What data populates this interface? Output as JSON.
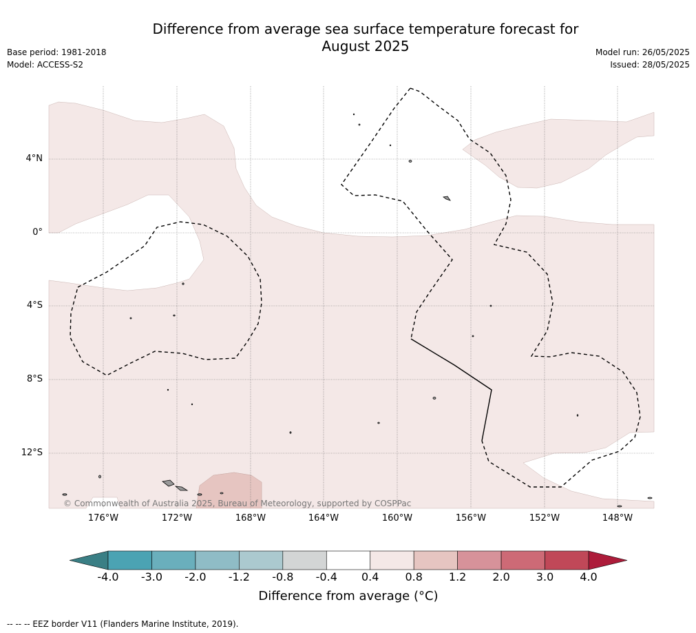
{
  "title": "Difference from average sea surface temperature forecast for\nAugust 2025",
  "meta_left": {
    "base_period": "Base period: 1981-2018",
    "model": "Model: ACCESS-S2"
  },
  "meta_right": {
    "model_run": "Model run: 26/05/2025",
    "issued": "Issued: 28/05/2025"
  },
  "map": {
    "lat_labels": [
      "4°N",
      "0°",
      "4°S",
      "8°S",
      "12°S"
    ],
    "lon_labels": [
      "176°W",
      "172°W",
      "168°W",
      "164°W",
      "160°W",
      "156°W",
      "152°W",
      "148°W"
    ],
    "copyright": "© Commonwealth of Australia 2025, Bureau of Meteorology, supported by COSPPac",
    "colors": {
      "anomaly_0_4_to_0_8": "#f4e8e7",
      "anomaly_0_8_to_1_2": "#e6c5c1",
      "land": "#999999"
    }
  },
  "colorbar": {
    "title": "Difference from average (°C)",
    "tick_labels": [
      "-4.0",
      "-3.0",
      "-2.0",
      "-1.2",
      "-0.8",
      "-0.4",
      "0.4",
      "0.8",
      "1.2",
      "2.0",
      "3.0",
      "4.0"
    ],
    "colors": [
      "#4ba3b3",
      "#6aafbc",
      "#8fbcc6",
      "#abc9cf",
      "#d3d5d5",
      "#ffffff",
      "#f4e8e7",
      "#e6c5c1",
      "#d7929a",
      "#cd6a76",
      "#c04858"
    ],
    "extend_low_color": "#3a7f85",
    "extend_high_color": "#ad1c3a"
  },
  "footer": "--  --  -- EEZ border V11 (Flanders Marine Institute, 2019)."
}
